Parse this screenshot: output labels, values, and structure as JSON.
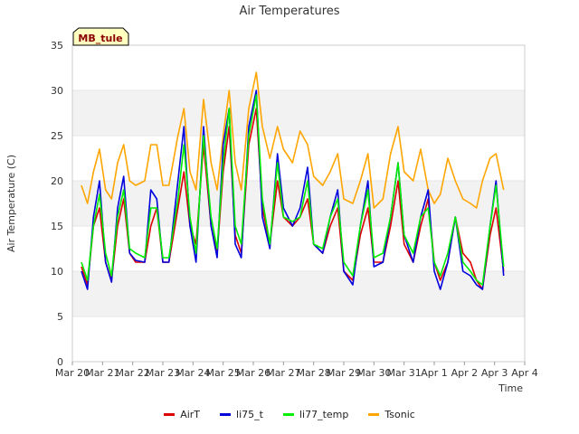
{
  "chart_data": {
    "type": "line",
    "title": "Air Temperatures",
    "xlabel": "Time",
    "ylabel": "Air Temperature (C)",
    "ylim": [
      0,
      35
    ],
    "yticks": [
      0,
      5,
      10,
      15,
      20,
      25,
      30,
      35
    ],
    "xlim": [
      0,
      15
    ],
    "xticks": [
      {
        "v": 0,
        "label": "Mar 20"
      },
      {
        "v": 1,
        "label": "Mar 21"
      },
      {
        "v": 2,
        "label": "Mar 22"
      },
      {
        "v": 3,
        "label": "Mar 23"
      },
      {
        "v": 4,
        "label": "Mar 24"
      },
      {
        "v": 5,
        "label": "Mar 25"
      },
      {
        "v": 6,
        "label": "Mar 26"
      },
      {
        "v": 7,
        "label": "Mar 27"
      },
      {
        "v": 8,
        "label": "Mar 28"
      },
      {
        "v": 9,
        "label": "Mar 29"
      },
      {
        "v": 10,
        "label": "Mar 30"
      },
      {
        "v": 11,
        "label": "Mar 31"
      },
      {
        "v": 12,
        "label": "Apr 1"
      },
      {
        "v": 13,
        "label": "Apr 2"
      },
      {
        "v": 14,
        "label": "Apr 3"
      },
      {
        "v": 15,
        "label": "Apr 4"
      }
    ],
    "background_bands": true,
    "station_label": "MB_tule",
    "series": [
      {
        "name": "AirT",
        "color": "#dd0000",
        "x": [
          0.3,
          0.5,
          0.7,
          0.9,
          1.1,
          1.3,
          1.5,
          1.7,
          1.9,
          2.1,
          2.4,
          2.6,
          2.8,
          3.0,
          3.2,
          3.5,
          3.7,
          3.9,
          4.1,
          4.35,
          4.6,
          4.8,
          5.0,
          5.2,
          5.4,
          5.6,
          5.85,
          6.1,
          6.3,
          6.55,
          6.8,
          7.0,
          7.3,
          7.55,
          7.8,
          8.0,
          8.3,
          8.55,
          8.8,
          9.0,
          9.3,
          9.55,
          9.8,
          10.0,
          10.3,
          10.55,
          10.8,
          11.0,
          11.3,
          11.55,
          11.8,
          12.0,
          12.2,
          12.45,
          12.7,
          12.95,
          13.2,
          13.4,
          13.6,
          13.85,
          14.05,
          14.3
        ],
        "y": [
          10.5,
          8.5,
          15,
          17,
          11,
          9,
          15,
          18,
          12,
          11,
          11,
          15,
          17,
          11,
          11,
          17,
          21,
          15,
          13,
          24,
          15,
          12,
          21,
          26,
          14,
          12,
          24,
          28,
          17,
          13,
          20,
          16,
          15,
          16,
          18,
          13,
          12,
          15,
          17,
          10,
          9,
          14,
          17,
          11,
          11,
          15,
          20,
          13,
          11,
          15,
          18,
          11,
          9,
          11,
          16,
          12,
          11,
          9,
          8,
          14,
          17,
          10
        ]
      },
      {
        "name": "li75_t",
        "color": "#0000dd",
        "x": [
          0.3,
          0.5,
          0.7,
          0.9,
          1.1,
          1.3,
          1.5,
          1.7,
          1.9,
          2.1,
          2.4,
          2.6,
          2.8,
          3.0,
          3.2,
          3.5,
          3.7,
          3.9,
          4.1,
          4.35,
          4.6,
          4.8,
          5.0,
          5.2,
          5.4,
          5.6,
          5.85,
          6.1,
          6.3,
          6.55,
          6.8,
          7.0,
          7.3,
          7.55,
          7.8,
          8.0,
          8.3,
          8.55,
          8.8,
          9.0,
          9.3,
          9.55,
          9.8,
          10.0,
          10.3,
          10.55,
          10.8,
          11.0,
          11.3,
          11.55,
          11.8,
          12.0,
          12.2,
          12.45,
          12.7,
          12.95,
          13.2,
          13.4,
          13.6,
          13.85,
          14.05,
          14.3
        ],
        "y": [
          10,
          8,
          16,
          20,
          11,
          8.8,
          17,
          20.5,
          12,
          11.2,
          11,
          19,
          18,
          11,
          11,
          20,
          26,
          15,
          11,
          26,
          15,
          11.5,
          24,
          28,
          13,
          11.5,
          26,
          30,
          16,
          12.5,
          23,
          17,
          15,
          17,
          21.5,
          13,
          12,
          16,
          19,
          10,
          8.5,
          15,
          20,
          10.5,
          11,
          16,
          22,
          14,
          11,
          16,
          19,
          10,
          8,
          11,
          16,
          10,
          9.5,
          8.5,
          8,
          15,
          20,
          9.5
        ]
      },
      {
        "name": "li77_temp",
        "color": "#00ee00",
        "x": [
          0.3,
          0.5,
          0.7,
          0.9,
          1.1,
          1.3,
          1.5,
          1.7,
          1.9,
          2.1,
          2.4,
          2.6,
          2.8,
          3.0,
          3.2,
          3.5,
          3.7,
          3.9,
          4.1,
          4.35,
          4.6,
          4.8,
          5.0,
          5.2,
          5.4,
          5.6,
          5.85,
          6.1,
          6.3,
          6.55,
          6.8,
          7.0,
          7.3,
          7.55,
          7.8,
          8.0,
          8.3,
          8.55,
          8.8,
          9.0,
          9.3,
          9.55,
          9.8,
          10.0,
          10.3,
          10.55,
          10.8,
          11.0,
          11.3,
          11.55,
          11.8,
          12.0,
          12.2,
          12.45,
          12.7,
          12.95,
          13.2,
          13.4,
          13.6,
          13.85,
          14.05,
          14.3
        ],
        "y": [
          11,
          9,
          15,
          18.5,
          12,
          9.5,
          16,
          19,
          12.5,
          12,
          11.5,
          17,
          17,
          11.5,
          11.5,
          18,
          24,
          16,
          12,
          25,
          16,
          12.5,
          22,
          28,
          15,
          13,
          25,
          29.5,
          18,
          13,
          22,
          16,
          15.5,
          16,
          20,
          13,
          12.5,
          16,
          18,
          11,
          9.5,
          15,
          19,
          11.5,
          12,
          16,
          22,
          14,
          12,
          16,
          17,
          11,
          9.5,
          12,
          16,
          11,
          10,
          9,
          8.5,
          15,
          19.5,
          10.5
        ]
      },
      {
        "name": "Tsonic",
        "color": "#ffa500",
        "x": [
          0.3,
          0.5,
          0.7,
          0.9,
          1.1,
          1.3,
          1.5,
          1.7,
          1.9,
          2.1,
          2.4,
          2.6,
          2.8,
          3.0,
          3.2,
          3.5,
          3.7,
          3.9,
          4.1,
          4.35,
          4.6,
          4.8,
          5.0,
          5.2,
          5.4,
          5.6,
          5.85,
          6.1,
          6.3,
          6.55,
          6.8,
          7.0,
          7.3,
          7.55,
          7.8,
          8.0,
          8.3,
          8.55,
          8.8,
          9.0,
          9.3,
          9.55,
          9.8,
          10.0,
          10.3,
          10.55,
          10.8,
          11.0,
          11.3,
          11.55,
          11.8,
          12.0,
          12.2,
          12.45,
          12.7,
          12.95,
          13.2,
          13.4,
          13.6,
          13.85,
          14.05,
          14.3
        ],
        "y": [
          19.5,
          17.5,
          21,
          23.5,
          19,
          18,
          22,
          24,
          20,
          19.5,
          20,
          24,
          24,
          19.5,
          19.5,
          25,
          28,
          21,
          19,
          29,
          22,
          19,
          25,
          30,
          22,
          19,
          28,
          32,
          26,
          22.5,
          26,
          23.5,
          22,
          25.5,
          24,
          20.5,
          19.5,
          21,
          23,
          18,
          17.5,
          20,
          23,
          17,
          18,
          23,
          26,
          21,
          20,
          23.5,
          19,
          17.5,
          18.5,
          22.5,
          20,
          18,
          17.5,
          17,
          20,
          22.5,
          23,
          19
        ]
      }
    ]
  }
}
